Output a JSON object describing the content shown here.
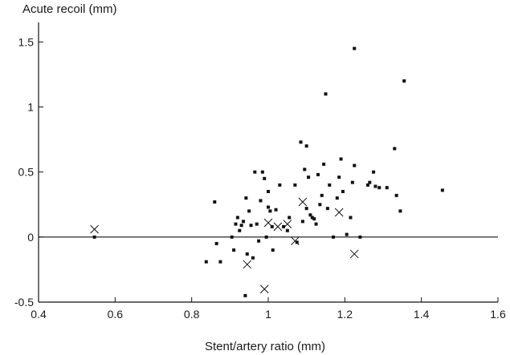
{
  "chart_data": {
    "type": "scatter",
    "title": "",
    "ylabel": "Acute recoil (mm)",
    "xlabel": "Stent/artery ratio (mm)",
    "xlim": [
      0.4,
      1.6
    ],
    "ylim": [
      -0.5,
      1.65
    ],
    "x_ticks": [
      0.4,
      0.6,
      0.8,
      1.0,
      1.2,
      1.4,
      1.6
    ],
    "x_tick_labels": [
      "0.4",
      "0.6",
      "0.8",
      "1",
      "1.2",
      "1.4",
      "1.6"
    ],
    "y_ticks": [
      -0.5,
      0,
      0.5,
      1,
      1.5
    ],
    "y_tick_labels": [
      "-0.5",
      "0",
      "0.5",
      "1",
      "1.5"
    ],
    "reference_line_y": 0,
    "grid": false,
    "series": [
      {
        "marker": "square",
        "color": "#111111",
        "points": [
          [
            0.546,
            0.0
          ],
          [
            0.838,
            -0.19
          ],
          [
            0.86,
            0.27
          ],
          [
            0.865,
            -0.05
          ],
          [
            0.875,
            -0.19
          ],
          [
            0.905,
            0.0
          ],
          [
            0.91,
            -0.1
          ],
          [
            0.915,
            0.1
          ],
          [
            0.92,
            0.15
          ],
          [
            0.925,
            0.05
          ],
          [
            0.93,
            0.09
          ],
          [
            0.935,
            0.12
          ],
          [
            0.94,
            -0.45
          ],
          [
            0.942,
            0.3
          ],
          [
            0.945,
            -0.13
          ],
          [
            0.95,
            0.2
          ],
          [
            0.955,
            0.09
          ],
          [
            0.96,
            -0.16
          ],
          [
            0.965,
            0.5
          ],
          [
            0.97,
            0.1
          ],
          [
            0.975,
            -0.03
          ],
          [
            0.98,
            0.28
          ],
          [
            0.985,
            0.5
          ],
          [
            0.99,
            0.45
          ],
          [
            0.995,
            0.0
          ],
          [
            1.0,
            0.35
          ],
          [
            1.0,
            0.23
          ],
          [
            1.005,
            0.2
          ],
          [
            1.01,
            0.08
          ],
          [
            1.012,
            -0.1
          ],
          [
            1.02,
            0.21
          ],
          [
            1.03,
            0.4
          ],
          [
            1.04,
            0.08
          ],
          [
            1.05,
            0.05
          ],
          [
            1.055,
            0.15
          ],
          [
            1.07,
            0.4
          ],
          [
            1.075,
            -0.04
          ],
          [
            1.085,
            0.73
          ],
          [
            1.09,
            0.12
          ],
          [
            1.095,
            0.52
          ],
          [
            1.1,
            0.7
          ],
          [
            1.1,
            0.22
          ],
          [
            1.105,
            0.46
          ],
          [
            1.11,
            0.17
          ],
          [
            1.115,
            0.15
          ],
          [
            1.12,
            0.14
          ],
          [
            1.125,
            0.1
          ],
          [
            1.13,
            0.48
          ],
          [
            1.135,
            0.25
          ],
          [
            1.14,
            0.32
          ],
          [
            1.145,
            0.56
          ],
          [
            1.15,
            1.1
          ],
          [
            1.155,
            0.22
          ],
          [
            1.16,
            0.4
          ],
          [
            1.17,
            0.0
          ],
          [
            1.18,
            0.3
          ],
          [
            1.185,
            0.46
          ],
          [
            1.19,
            0.6
          ],
          [
            1.195,
            0.35
          ],
          [
            1.205,
            0.02
          ],
          [
            1.215,
            0.15
          ],
          [
            1.22,
            0.42
          ],
          [
            1.225,
            0.55
          ],
          [
            1.225,
            1.45
          ],
          [
            1.24,
            0.0
          ],
          [
            1.26,
            0.4
          ],
          [
            1.265,
            0.42
          ],
          [
            1.275,
            0.5
          ],
          [
            1.28,
            0.39
          ],
          [
            1.29,
            0.38
          ],
          [
            1.31,
            0.38
          ],
          [
            1.33,
            0.68
          ],
          [
            1.335,
            0.32
          ],
          [
            1.345,
            0.2
          ],
          [
            1.355,
            1.2
          ],
          [
            1.455,
            0.36
          ]
        ]
      },
      {
        "marker": "x",
        "color": "#111111",
        "points": [
          [
            0.546,
            0.06
          ],
          [
            0.945,
            -0.21
          ],
          [
            0.99,
            -0.4
          ],
          [
            1.0,
            0.11
          ],
          [
            1.025,
            0.08
          ],
          [
            1.05,
            0.1
          ],
          [
            1.07,
            -0.03
          ],
          [
            1.09,
            0.27
          ],
          [
            1.185,
            0.19
          ],
          [
            1.225,
            -0.13
          ]
        ]
      }
    ]
  }
}
